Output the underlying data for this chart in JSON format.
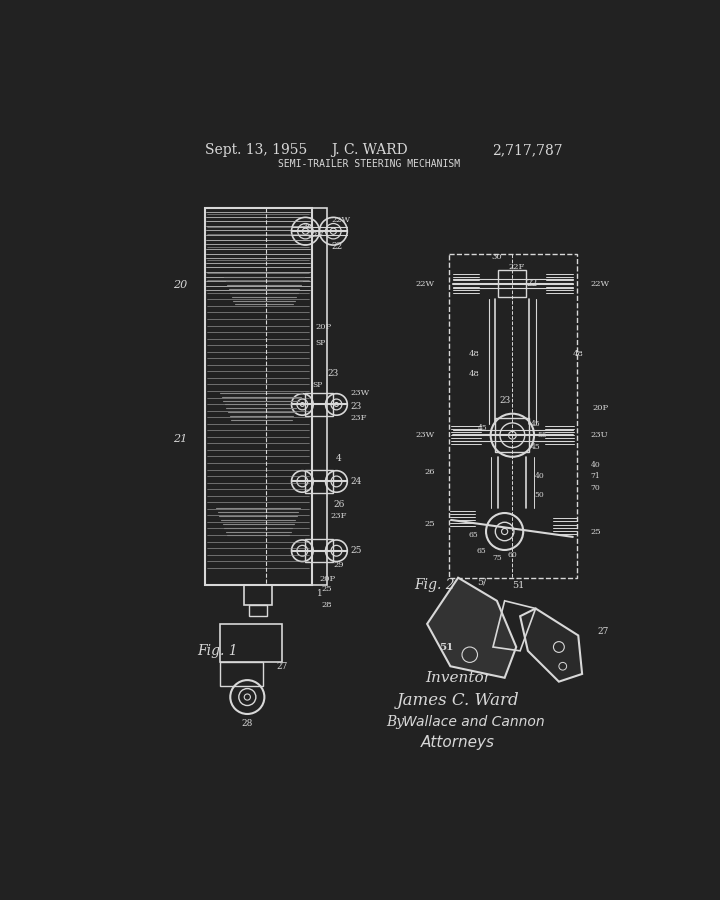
{
  "bg_color": "#222222",
  "line_color": "#d8d8d8",
  "text_color": "#d8d8d8",
  "title_date": "Sept. 13, 1955",
  "title_name": "J. C. WARD",
  "title_patent": "2,717,787",
  "title_sub": "SEMI-TRAILER STEERING MECHANISM",
  "inventor_label": "Inventor",
  "inventor_name": "James C. Ward",
  "attorney_by": "By",
  "attorney_firm": "Wallace and Cannon",
  "attorney_title": "Attorneys",
  "fig1_label": "Fig. 1",
  "fig2_label": "Fig. 2"
}
